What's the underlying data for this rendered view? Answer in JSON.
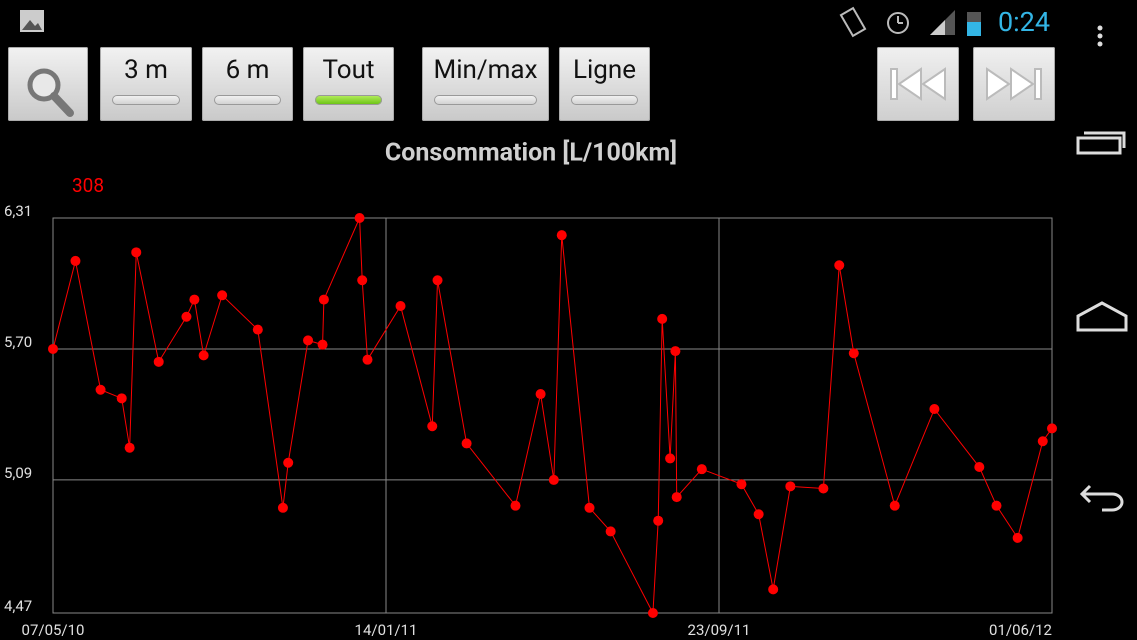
{
  "status_bar": {
    "time": "0:24"
  },
  "toolbar": {
    "buttons": [
      "3 m",
      "6 m",
      "Tout",
      "Min/max",
      "Ligne"
    ]
  },
  "chart_data": {
    "type": "line",
    "title": "Consommation [L/100km]",
    "annotation": "308",
    "color": "#ff0000",
    "x": [
      "2010-05-07",
      "2010-05-24",
      "2010-06-12",
      "2010-06-28",
      "2010-07-04",
      "2010-07-09",
      "2010-07-26",
      "2010-08-16",
      "2010-08-22",
      "2010-08-29",
      "2010-09-12",
      "2010-10-09",
      "2010-10-28",
      "2010-11-01",
      "2010-11-16",
      "2010-11-27",
      "2010-11-28",
      "2010-12-25",
      "2010-12-27",
      "2010-12-31",
      "2011-01-25",
      "2011-02-18",
      "2011-02-22",
      "2011-03-16",
      "2011-04-22",
      "2011-05-11",
      "2011-05-21",
      "2011-05-27",
      "2011-06-17",
      "2011-07-03",
      "2011-08-04",
      "2011-08-08",
      "2011-08-11",
      "2011-08-17",
      "2011-08-21",
      "2011-08-22",
      "2011-09-10",
      "2011-10-10",
      "2011-10-23",
      "2011-11-03",
      "2011-11-16",
      "2011-12-11",
      "2011-12-23",
      "2012-01-03",
      "2012-02-03",
      "2012-03-04",
      "2012-04-07",
      "2012-04-20",
      "2012-05-06",
      "2012-05-25",
      "2012-06-01"
    ],
    "values": [
      5.7,
      6.11,
      5.51,
      5.47,
      5.24,
      6.15,
      5.64,
      5.85,
      5.93,
      5.67,
      5.95,
      5.79,
      4.96,
      5.17,
      5.74,
      5.72,
      5.93,
      6.31,
      6.02,
      5.65,
      5.9,
      5.34,
      6.02,
      5.26,
      4.97,
      5.49,
      5.09,
      6.23,
      4.96,
      4.85,
      4.47,
      4.9,
      5.84,
      5.19,
      5.69,
      5.01,
      5.14,
      5.07,
      4.93,
      4.58,
      5.06,
      5.05,
      6.09,
      5.68,
      4.97,
      5.42,
      5.15,
      4.97,
      4.82,
      5.27,
      5.33
    ],
    "xlim": [
      "2010-05-07",
      "2012-06-01"
    ],
    "xticks": [
      {
        "value": "2010-05-07",
        "label": "07/05/10"
      },
      {
        "value": "2011-01-14",
        "label": "14/01/11"
      },
      {
        "value": "2011-09-23",
        "label": "23/09/11"
      },
      {
        "value": "2012-06-01",
        "label": "01/06/12"
      }
    ],
    "ylim": [
      4.47,
      6.31
    ],
    "yticks": [
      {
        "value": 4.47,
        "label": "4,47"
      },
      {
        "value": 5.09,
        "label": "5,09"
      },
      {
        "value": 5.7,
        "label": "5,70"
      },
      {
        "value": 6.31,
        "label": "6,31"
      }
    ],
    "grid": true
  }
}
